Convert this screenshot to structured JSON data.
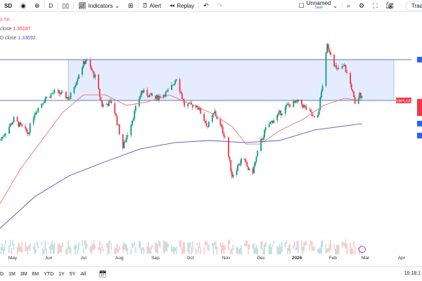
{
  "toolbar": {
    "symbol": "SD",
    "interval": "D",
    "indicators": "Indicators",
    "alert": "Alert",
    "replay": "Replay",
    "layout_name": "Unnamed",
    "layout_save": "Save",
    "trade": "Trad"
  },
  "legend": {
    "volume": "8.5K",
    "ma1_label": "close",
    "ma1_value": "1.35187",
    "ma2_label": "D close",
    "ma2_value": "1.33692"
  },
  "price_tag": "GBPUSD",
  "bottom": {
    "ranges": [
      "D",
      "1M",
      "3M",
      "6M",
      "YTD",
      "1Y",
      "5Y",
      "All"
    ],
    "clock": "16:18:1"
  },
  "colors": {
    "up": "#089981",
    "down": "#f23645",
    "ma50": "#e57373",
    "ma200": "#5b52c5",
    "zone": "#2962ff"
  },
  "chart_data": {
    "type": "candlestick",
    "symbol": "GBPUSD",
    "interval": "D",
    "x_ticks": [
      "May",
      "Jun",
      "Jul",
      "Aug",
      "Sep",
      "Oct",
      "Nov",
      "Dec",
      "2026",
      "Feb",
      "Mar",
      "Apr"
    ],
    "close_path": [
      [
        "2025-04-20",
        1.3234
      ],
      [
        "2025-05-02",
        1.3375
      ],
      [
        "2025-05-14",
        1.3281
      ],
      [
        "2025-05-20",
        1.3422
      ],
      [
        "2025-05-29",
        1.3516
      ],
      [
        "2025-06-07",
        1.3563
      ],
      [
        "2025-06-19",
        1.3516
      ],
      [
        "2025-06-28",
        1.3704
      ],
      [
        "2025-07-03",
        1.3775
      ],
      [
        "2025-07-11",
        1.3657
      ],
      [
        "2025-07-17",
        1.3469
      ],
      [
        "2025-07-26",
        1.3492
      ],
      [
        "2025-08-04",
        1.3187
      ],
      [
        "2025-08-11",
        1.3352
      ],
      [
        "2025-08-20",
        1.3563
      ],
      [
        "2025-09-01",
        1.3516
      ],
      [
        "2025-09-13",
        1.3563
      ],
      [
        "2025-09-19",
        1.3657
      ],
      [
        "2025-09-26",
        1.3469
      ],
      [
        "2025-10-07",
        1.3469
      ],
      [
        "2025-10-16",
        1.3328
      ],
      [
        "2025-10-22",
        1.3422
      ],
      [
        "2025-10-31",
        1.3258
      ],
      [
        "2025-11-06",
        1.2999
      ],
      [
        "2025-11-15",
        1.3117
      ],
      [
        "2025-11-23",
        1.2999
      ],
      [
        "2025-11-30",
        1.321
      ],
      [
        "2025-12-06",
        1.3328
      ],
      [
        "2025-12-15",
        1.3399
      ],
      [
        "2025-12-24",
        1.3469
      ],
      [
        "2026-01-03",
        1.3492
      ],
      [
        "2026-01-12",
        1.3422
      ],
      [
        "2026-01-18",
        1.3352
      ],
      [
        "2026-01-23",
        1.361
      ],
      [
        "2026-01-27",
        1.3869
      ],
      [
        "2026-01-30",
        1.3822
      ],
      [
        "2026-02-04",
        1.3704
      ],
      [
        "2026-02-11",
        1.3728
      ],
      [
        "2026-02-17",
        1.3587
      ],
      [
        "2026-02-20",
        1.3469
      ],
      [
        "2026-02-24",
        1.3539
      ],
      [
        "2026-02-26",
        1.3539
      ]
    ],
    "ma50": [
      [
        "2025-04-20",
        1.2811
      ],
      [
        "2025-05-08",
        1.3046
      ],
      [
        "2025-05-26",
        1.3234
      ],
      [
        "2025-06-13",
        1.3422
      ],
      [
        "2025-07-01",
        1.3539
      ],
      [
        "2025-07-20",
        1.3539
      ],
      [
        "2025-08-07",
        1.3469
      ],
      [
        "2025-08-25",
        1.3492
      ],
      [
        "2025-09-13",
        1.3539
      ],
      [
        "2025-10-01",
        1.3478
      ],
      [
        "2025-10-18",
        1.3422
      ],
      [
        "2025-11-06",
        1.3328
      ],
      [
        "2025-11-18",
        1.321
      ],
      [
        "2025-11-30",
        1.321
      ],
      [
        "2025-12-18",
        1.3304
      ],
      [
        "2026-01-06",
        1.3375
      ],
      [
        "2026-01-24",
        1.3469
      ],
      [
        "2026-02-11",
        1.3516
      ],
      [
        "2026-02-26",
        1.3502
      ]
    ],
    "ma200": [
      [
        "2025-04-20",
        1.2646
      ],
      [
        "2025-05-20",
        1.2858
      ],
      [
        "2025-06-19",
        1.2999
      ],
      [
        "2025-07-20",
        1.3093
      ],
      [
        "2025-08-19",
        1.3178
      ],
      [
        "2025-09-18",
        1.322
      ],
      [
        "2025-10-18",
        1.3234
      ],
      [
        "2025-11-17",
        1.322
      ],
      [
        "2025-12-17",
        1.3234
      ],
      [
        "2026-01-16",
        1.3304
      ],
      [
        "2026-02-26",
        1.3347
      ]
    ],
    "zone": {
      "start": "2025-06-18",
      "top": 1.3775,
      "bottom": 1.3502
    },
    "horizontal_lines": [
      1.3775,
      1.3502
    ],
    "ylim": [
      1.258,
      1.408
    ]
  }
}
